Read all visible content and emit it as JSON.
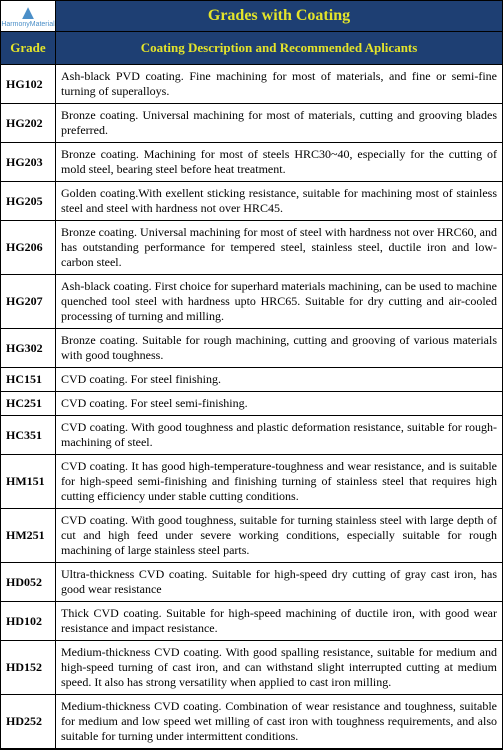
{
  "logo": {
    "brand": "HarmonyMaterial"
  },
  "title": "Grades with Coating",
  "headers": {
    "grade": "Grade",
    "desc": "Coating Description and Recommended Aplicants"
  },
  "rows": [
    {
      "grade": "HG102",
      "desc": "Ash-black PVD coating. Fine machining for most of materials, and fine or semi-fine turning of superalloys."
    },
    {
      "grade": "HG202",
      "desc": "Bronze coating. Universal machining for most of materials, cutting and grooving blades preferred."
    },
    {
      "grade": "HG203",
      "desc": "Bronze coating. Machining for most of steels HRC30~40, especially for the cutting of mold steel, bearing steel before heat treatment."
    },
    {
      "grade": "HG205",
      "desc": "Golden coating.With exellent sticking resistance, suitable for machining most of stainless steel and steel with hardness not over HRC45."
    },
    {
      "grade": "HG206",
      "desc": "Bronze coating. Universal machining for most of steel with hardness not over HRC60, and has outstanding performance for tempered steel, stainless steel, ductile iron and low-carbon steel."
    },
    {
      "grade": "HG207",
      "desc": "Ash-black coating. First choice for superhard materials machining, can be used to machine quenched tool steel with hardness upto HRC65. Suitable for dry cutting and air-cooled processing of turning and milling."
    },
    {
      "grade": "HG302",
      "desc": "Bronze coating. Suitable for rough machining, cutting and grooving of various materials with good toughness."
    },
    {
      "grade": "HC151",
      "desc": "CVD coating. For steel finishing."
    },
    {
      "grade": "HC251",
      "desc": "CVD coating. For steel semi-finishing."
    },
    {
      "grade": "HC351",
      "desc": "CVD coating. With good toughness and plastic deformation resistance, suitable for rough-machining of steel."
    },
    {
      "grade": "HM151",
      "desc": "CVD coating. It has good high-temperature-toughness and wear resistance, and is suitable for high-speed semi-finishing and finishing turning of stainless steel that requires high cutting efficiency under stable cutting conditions."
    },
    {
      "grade": "HM251",
      "desc": "CVD coating. With good toughness, suitable for turning stainless steel with large depth of cut and high feed under severe working conditions, especially suitable for rough machining of large stainless steel parts."
    },
    {
      "grade": "HD052",
      "desc": "Ultra-thickness CVD coating. Suitable for high-speed dry cutting of gray cast iron, has good wear resistance"
    },
    {
      "grade": "HD102",
      "desc": "Thick CVD coating. Suitable for high-speed machining of ductile iron, with good wear resistance and impact resistance."
    },
    {
      "grade": "HD152",
      "desc": "Medium-thickness CVD coating. With good spalling resistance, suitable for medium and high-speed turning of cast iron, and can withstand slight interrupted cutting at medium speed. It also has strong versatility when applied to cast iron milling."
    },
    {
      "grade": "HD252",
      "desc": "Medium-thickness CVD coating. Combination of wear resistance and toughness, suitable for medium and low speed wet milling of cast iron with toughness requirements, and also suitable for turning under intermittent conditions."
    }
  ]
}
